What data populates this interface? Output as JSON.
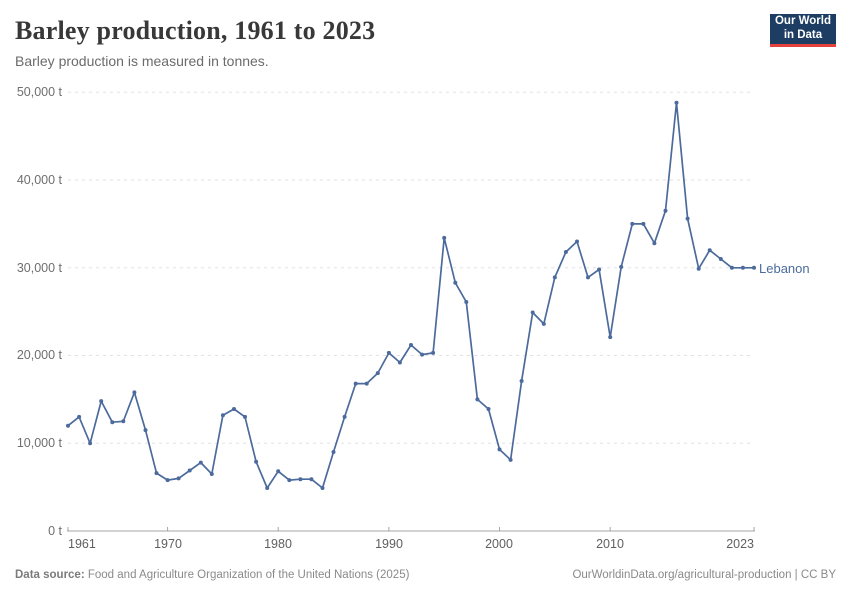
{
  "header": {
    "title": "Barley production, 1961 to 2023",
    "subtitle": "Barley production is measured in tonnes.",
    "logo": {
      "line1": "Our World",
      "line2": "in Data"
    }
  },
  "chart_data": {
    "type": "line",
    "title": "Barley production, 1961 to 2023",
    "ylabel": "Barley production (tonnes)",
    "unit": "t",
    "grid": true,
    "legend_position": "end-of-line",
    "xlim": [
      1961,
      2023
    ],
    "ylim": [
      0,
      50000
    ],
    "x_ticks": [
      1961,
      1970,
      1980,
      1990,
      2000,
      2010,
      2023
    ],
    "y_ticks": [
      0,
      10000,
      20000,
      30000,
      40000,
      50000
    ],
    "y_tick_labels": [
      "0 t",
      "10,000 t",
      "20,000 t",
      "30,000 t",
      "40,000 t",
      "50,000 t"
    ],
    "series": [
      {
        "name": "Lebanon",
        "color": "#4c6a9c",
        "x": [
          1961,
          1962,
          1963,
          1964,
          1965,
          1966,
          1967,
          1968,
          1969,
          1970,
          1971,
          1972,
          1973,
          1974,
          1975,
          1976,
          1977,
          1978,
          1979,
          1980,
          1981,
          1982,
          1983,
          1984,
          1985,
          1986,
          1987,
          1988,
          1989,
          1990,
          1991,
          1992,
          1993,
          1994,
          1995,
          1996,
          1997,
          1998,
          1999,
          2000,
          2001,
          2002,
          2003,
          2004,
          2005,
          2006,
          2007,
          2008,
          2009,
          2010,
          2011,
          2012,
          2013,
          2014,
          2015,
          2016,
          2017,
          2018,
          2019,
          2020,
          2021,
          2022,
          2023
        ],
        "values": [
          12000,
          13000,
          10000,
          14800,
          12400,
          12500,
          15800,
          11500,
          6600,
          5800,
          6000,
          6900,
          7800,
          6500,
          13200,
          13900,
          13000,
          7900,
          4900,
          6800,
          5800,
          5900,
          5900,
          4900,
          9000,
          13000,
          16800,
          16800,
          18000,
          20300,
          19200,
          21200,
          20100,
          20300,
          33400,
          28300,
          26100,
          15000,
          13900,
          9300,
          8100,
          17100,
          24900,
          23600,
          28900,
          31800,
          33000,
          28900,
          29800,
          22100,
          30100,
          35000,
          35000,
          32800,
          36500,
          48800,
          35600,
          29900,
          32000,
          31000,
          30000,
          30000,
          30000
        ]
      }
    ]
  },
  "footer": {
    "source_label": "Data source:",
    "source_text": " Food and Agriculture Organization of the United Nations (2025)",
    "credit": "OurWorldinData.org/agricultural-production | CC BY"
  }
}
